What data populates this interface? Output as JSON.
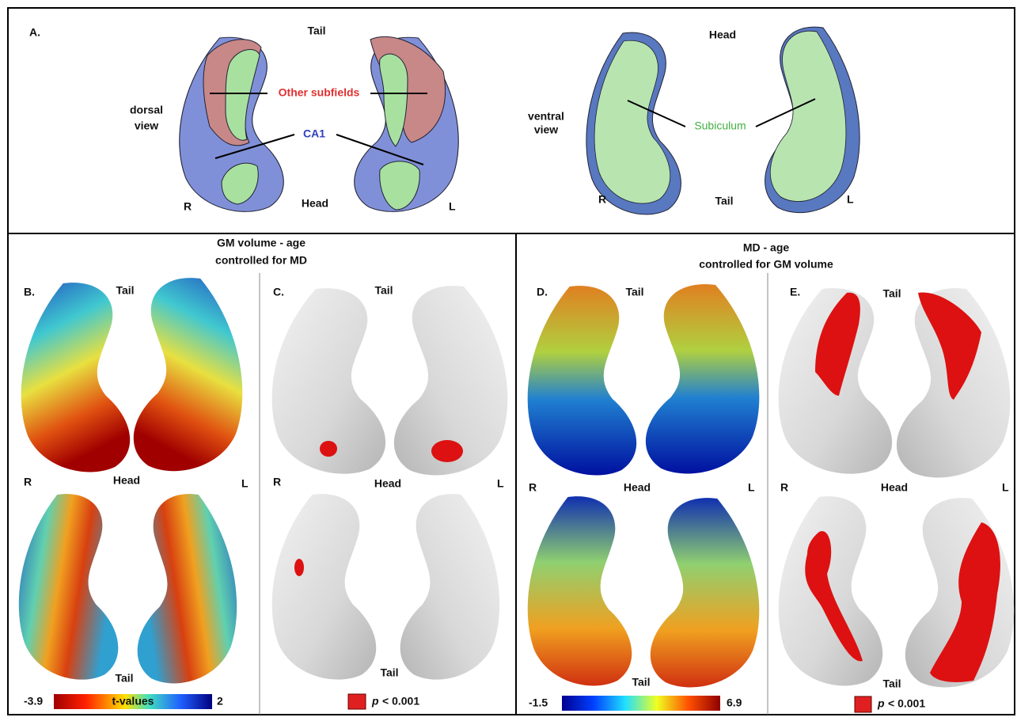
{
  "panel_a": {
    "label": "A.",
    "dorsal": {
      "top": "Tail",
      "bottom": "Head",
      "view": [
        "dorsal",
        "view"
      ],
      "right": "R",
      "left": "L",
      "other_subfields": "Other subfields",
      "ca1": "CA1"
    },
    "ventral": {
      "top": "Head",
      "bottom": "Tail",
      "view": [
        "ventral",
        "view"
      ],
      "right": "R",
      "left": "L",
      "subiculum": "Subiculum"
    }
  },
  "left_header": [
    "GM volume - age",
    "controlled for MD"
  ],
  "right_header": [
    "MD - age",
    "controlled for GM volume"
  ],
  "panel_b": {
    "label": "B.",
    "top": "Tail",
    "right": "R",
    "middle": "Head",
    "left": "L",
    "bottom": "Tail",
    "colorbar": {
      "min": -3.9,
      "title": "t-values",
      "max": 2
    }
  },
  "panel_c": {
    "label": "C.",
    "top": "Tail",
    "right": "R",
    "middle": "Head",
    "left": "L",
    "bottom": "Tail",
    "legend": {
      "symbol": "p",
      "text": "< 0.001"
    }
  },
  "panel_d": {
    "label": "D.",
    "top": "Tail",
    "right": "R",
    "middle": "Head",
    "left": "L",
    "bottom": "Tail",
    "colorbar": {
      "min": -1.5,
      "max": 6.9
    }
  },
  "panel_e": {
    "label": "E.",
    "top": "Tail",
    "right": "R",
    "middle": "Head",
    "left": "L",
    "bottom": "Tail",
    "legend": {
      "symbol": "p",
      "text": "< 0.001"
    }
  }
}
